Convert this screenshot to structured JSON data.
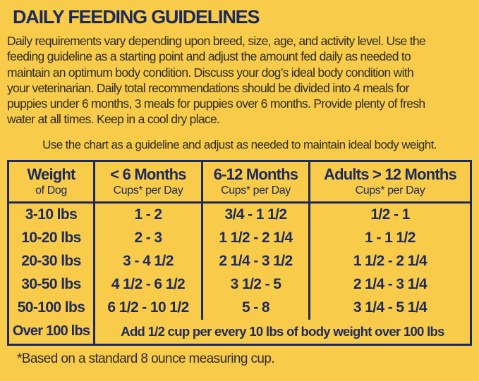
{
  "colors": {
    "background": "#F8CB4B",
    "navy": "#1E2A5A",
    "text_dark": "#2F2D28"
  },
  "title": "DAILY FEEDING GUIDELINES",
  "intro_lines": [
    "Daily requirements vary depending upon breed, size, age, and activity level. Use the",
    "feeding guideline as a starting point and adjust the amount fed daily as needed to",
    "maintain an optimum body condition. Discuss your dog’s ideal body condition with",
    "your veterinarian. Daily total recommendations should be divided into 4 meals for",
    "puppies under 6 months, 3 meals for puppies over 6 months. Provide plenty of fresh",
    "water at all times. Keep in a cool dry place."
  ],
  "chart_note": "Use the chart as a guideline and adjust as needed to maintain ideal body weight.",
  "table": {
    "columns": [
      {
        "title": "Weight",
        "subtitle": "of Dog"
      },
      {
        "title": "< 6 Months",
        "subtitle": "Cups* per Day"
      },
      {
        "title": "6-12 Months",
        "subtitle": "Cups* per Day"
      },
      {
        "title": "Adults > 12 Months",
        "subtitle": "Cups* per Day"
      }
    ],
    "rows": [
      {
        "weight": "3-10 lbs",
        "under6": "1 - 2",
        "m6to12": "3/4 - 1 1/2",
        "adult": "1/2 - 1"
      },
      {
        "weight": "10-20 lbs",
        "under6": "2 - 3",
        "m6to12": "1 1/2 - 2 1/4",
        "adult": "1 - 1 1/2"
      },
      {
        "weight": "20-30 lbs",
        "under6": "3 - 4 1/2",
        "m6to12": "2 1/4 - 3 1/2",
        "adult": "1 1/2 - 2 1/4"
      },
      {
        "weight": "30-50 lbs",
        "under6": "4 1/2 - 6 1/2",
        "m6to12": "3 1/2 - 5",
        "adult": "2 1/4 - 3 1/4"
      },
      {
        "weight": "50-100 lbs",
        "under6": "6 1/2 - 10 1/2",
        "m6to12": "5 - 8",
        "adult": "3 1/4 - 5 1/4"
      }
    ],
    "footer_row": {
      "weight": "Over 100 lbs",
      "note": "Add 1/2 cup per every 10 lbs of body weight over 100 lbs"
    }
  },
  "footnote": "*Based on a standard 8 ounce measuring cup."
}
